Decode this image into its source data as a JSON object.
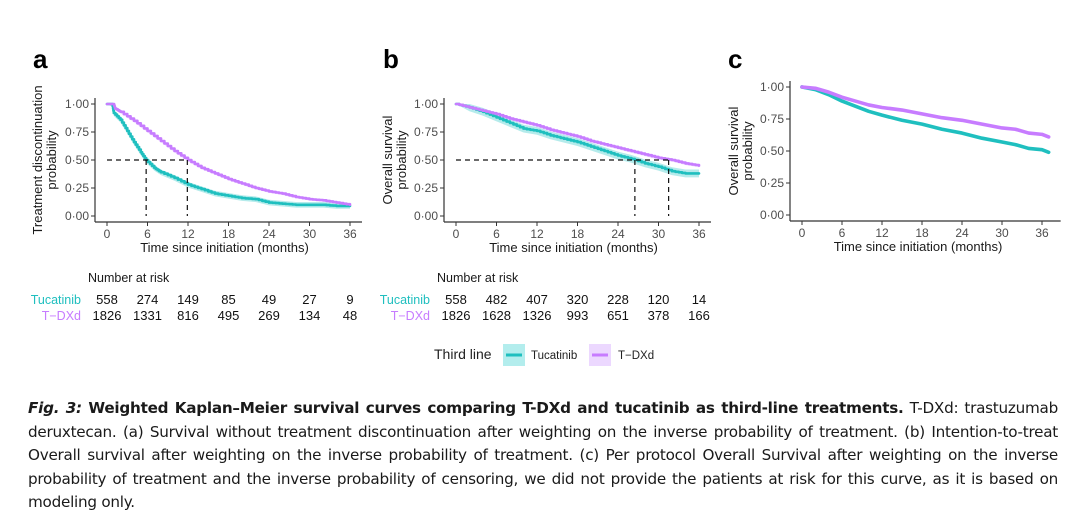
{
  "colors": {
    "tucatinib": "#1fbfbf",
    "tdxd": "#c77cff",
    "tucatinib_band": "#a8e8e8",
    "tdxd_band": "#ead2ff",
    "axis": "#333333",
    "tick_text": "#4d4d4d"
  },
  "legend": {
    "title": "Third line",
    "items": [
      {
        "name": "Tucatinib",
        "color": "#1fbfbf"
      },
      {
        "name": "T−DXd",
        "color": "#c77cff"
      }
    ]
  },
  "caption": {
    "fig_label": "Fig. 3:",
    "title": " Weighted Kaplan–Meier survival curves comparing T-DXd and tucatinib as third-line treatments.",
    "body": " T-DXd: trastuzumab deruxtecan. (a) Survival without treatment discontinuation after weighting on the inverse probability of treatment. (b) Intention-to-treat Overall survival after weighting on the inverse probability of treatment. (c) Per protocol Overall Survival after weighting on the inverse probability of treatment and the inverse probability of censoring, we did not provide the patients at risk for this curve, as it is based on modeling only."
  },
  "chart_data": [
    {
      "panel": "a",
      "type": "line",
      "title": "",
      "xlabel": "Time since initiation (months)",
      "ylabel": "Treatment discontinuation\nprobability",
      "xlim": [
        0,
        36
      ],
      "ylim": [
        0,
        1
      ],
      "xticks": [
        "0",
        "6",
        "12",
        "18",
        "24",
        "30",
        "36"
      ],
      "yticks": [
        "0·00",
        "0·25",
        "0·50",
        "0·75",
        "1·00"
      ],
      "medians": [
        {
          "series": "Tucatinib",
          "x": 5.8
        },
        {
          "series": "T−DXd",
          "x": 11.9
        }
      ],
      "series": [
        {
          "name": "Tucatinib",
          "x": [
            0,
            0.8,
            1.0,
            2,
            3,
            4,
            5,
            5.8,
            7,
            8,
            10,
            12,
            14,
            16,
            18,
            20,
            22,
            24,
            26,
            28,
            30,
            32,
            34,
            36
          ],
          "y": [
            1.0,
            1.0,
            0.92,
            0.86,
            0.76,
            0.66,
            0.57,
            0.5,
            0.43,
            0.39,
            0.34,
            0.28,
            0.24,
            0.2,
            0.18,
            0.16,
            0.15,
            0.12,
            0.11,
            0.1,
            0.1,
            0.1,
            0.09,
            0.09
          ],
          "band": 0.025
        },
        {
          "name": "T−DXd",
          "x": [
            0,
            1.0,
            1.2,
            2,
            4,
            6,
            8,
            10,
            12,
            14,
            16,
            18,
            20,
            22,
            24,
            26,
            28,
            30,
            32,
            34,
            36
          ],
          "y": [
            1.0,
            1.0,
            0.96,
            0.93,
            0.85,
            0.76,
            0.67,
            0.58,
            0.5,
            0.43,
            0.38,
            0.33,
            0.29,
            0.25,
            0.22,
            0.2,
            0.17,
            0.15,
            0.14,
            0.12,
            0.1
          ],
          "band": 0.012
        }
      ],
      "risk_table": {
        "title": "Number at risk",
        "rows": [
          {
            "name": "Tucatinib",
            "values": [
              "558",
              "274",
              "149",
              "85",
              "49",
              "27",
              "9"
            ]
          },
          {
            "name": "T−DXd",
            "values": [
              "1826",
              "1331",
              "816",
              "495",
              "269",
              "134",
              "48"
            ]
          }
        ]
      }
    },
    {
      "panel": "b",
      "type": "line",
      "title": "",
      "xlabel": "Time since initiation (months)",
      "ylabel": "Overall survival\nprobability",
      "xlim": [
        0,
        36
      ],
      "ylim": [
        0,
        1
      ],
      "xticks": [
        "0",
        "6",
        "12",
        "18",
        "24",
        "30",
        "36"
      ],
      "yticks": [
        "0·00",
        "0·25",
        "0·50",
        "0·75",
        "1·00"
      ],
      "medians": [
        {
          "series": "Tucatinib",
          "x": 26.5
        },
        {
          "series": "T−DXd",
          "x": 31.5
        }
      ],
      "series": [
        {
          "name": "Tucatinib",
          "x": [
            0,
            2,
            4,
            6,
            8,
            10,
            12,
            14,
            16,
            18,
            20,
            22,
            24,
            26,
            28,
            30,
            32,
            34,
            36
          ],
          "y": [
            1.0,
            0.97,
            0.93,
            0.88,
            0.83,
            0.78,
            0.76,
            0.72,
            0.69,
            0.66,
            0.62,
            0.58,
            0.54,
            0.51,
            0.47,
            0.44,
            0.4,
            0.38,
            0.38
          ],
          "band": 0.035
        },
        {
          "name": "T−DXd",
          "x": [
            0,
            2,
            4,
            6,
            8,
            10,
            12,
            14,
            16,
            18,
            20,
            22,
            24,
            26,
            28,
            30,
            32,
            34,
            36
          ],
          "y": [
            1.0,
            0.97,
            0.94,
            0.91,
            0.87,
            0.84,
            0.81,
            0.77,
            0.74,
            0.71,
            0.67,
            0.64,
            0.61,
            0.58,
            0.55,
            0.52,
            0.5,
            0.47,
            0.45
          ],
          "band": 0.015
        }
      ],
      "risk_table": {
        "title": "Number at risk",
        "rows": [
          {
            "name": "Tucatinib",
            "values": [
              "558",
              "482",
              "407",
              "320",
              "228",
              "120",
              "14"
            ]
          },
          {
            "name": "T−DXd",
            "values": [
              "1826",
              "1628",
              "1326",
              "993",
              "651",
              "378",
              "166"
            ]
          }
        ]
      }
    },
    {
      "panel": "c",
      "type": "line",
      "title": "",
      "xlabel": "Time since initiation (months)",
      "ylabel": "Overall survival\nprobability",
      "xlim": [
        0,
        37
      ],
      "ylim": [
        0,
        1
      ],
      "xticks": [
        "0",
        "6",
        "12",
        "18",
        "24",
        "30",
        "36"
      ],
      "yticks": [
        "0·00",
        "0·25",
        "0·50",
        "0·75",
        "1·00"
      ],
      "series": [
        {
          "name": "Tucatinib",
          "x": [
            0,
            2,
            4,
            6,
            8,
            10,
            12,
            15,
            18,
            21,
            24,
            27,
            30,
            32,
            34,
            36,
            37
          ],
          "y": [
            1.0,
            0.98,
            0.94,
            0.89,
            0.85,
            0.81,
            0.78,
            0.74,
            0.71,
            0.67,
            0.64,
            0.6,
            0.57,
            0.55,
            0.52,
            0.51,
            0.49
          ]
        },
        {
          "name": "T−DXd",
          "x": [
            0,
            2,
            4,
            6,
            8,
            10,
            12,
            15,
            18,
            21,
            24,
            27,
            30,
            32,
            34,
            36,
            37
          ],
          "y": [
            1.0,
            0.99,
            0.96,
            0.92,
            0.89,
            0.86,
            0.84,
            0.82,
            0.79,
            0.76,
            0.74,
            0.71,
            0.68,
            0.67,
            0.64,
            0.63,
            0.61
          ]
        }
      ]
    }
  ]
}
